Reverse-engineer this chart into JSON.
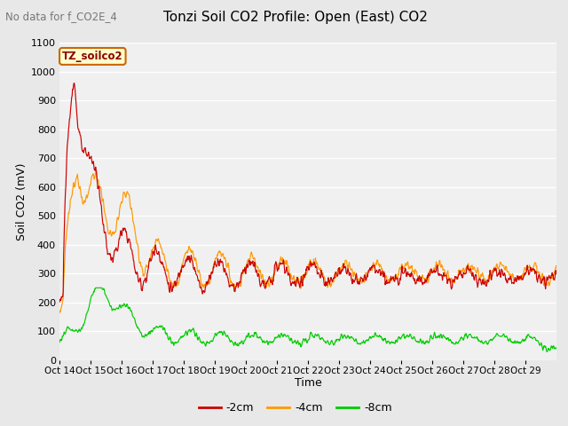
{
  "title": "Tonzi Soil CO2 Profile: Open (East) CO2",
  "no_data_text": "No data for f_CO2E_4",
  "ylabel": "Soil CO2 (mV)",
  "xlabel": "Time",
  "ylim": [
    0,
    1100
  ],
  "xlim": [
    0,
    280
  ],
  "color_2cm": "#cc0000",
  "color_4cm": "#ff9900",
  "color_8cm": "#00cc00",
  "legend_label_2cm": "-2cm",
  "legend_label_4cm": "-4cm",
  "legend_label_8cm": "-8cm",
  "legend_title": "TZ_soilco2",
  "background_color": "#e8e8e8",
  "plot_bg_color": "#f0f0f0",
  "grid_color": "#ffffff",
  "title_fontsize": 11,
  "axis_fontsize": 9,
  "yticks": [
    0,
    100,
    200,
    300,
    400,
    500,
    600,
    700,
    800,
    900,
    1000,
    1100
  ]
}
